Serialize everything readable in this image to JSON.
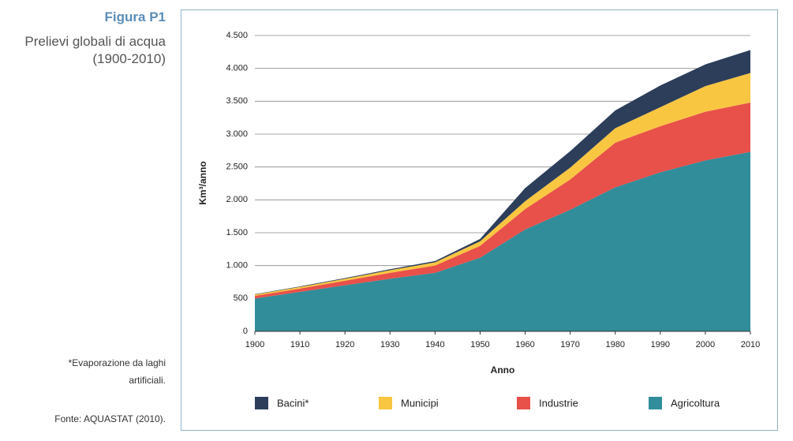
{
  "figure_label": "Figura P1",
  "subtitle_lines": [
    "Prelievi globali di acqua",
    "(1900-2010)"
  ],
  "footnote": "*Evaporazione da laghi artificiali.",
  "source": "Fonte: AQUASTAT (2010).",
  "chart_data": {
    "type": "stacked_area",
    "x_label": "Anno",
    "y_label": "Km³/anno",
    "x": [
      1900,
      1910,
      1920,
      1930,
      1940,
      1950,
      1960,
      1970,
      1980,
      1990,
      2000,
      2010
    ],
    "xlim": [
      1900,
      2010
    ],
    "xticks": [
      1900,
      1910,
      1920,
      1930,
      1940,
      1950,
      1960,
      1970,
      1980,
      1990,
      2000,
      2010
    ],
    "ylim": [
      0,
      4500
    ],
    "yticks": [
      0,
      500,
      {
        "value": 1000,
        "label": "1.000"
      },
      {
        "value": 1500,
        "label": "1.500"
      },
      {
        "value": 2000,
        "label": "2.000"
      },
      {
        "value": 2500,
        "label": "2.500"
      },
      {
        "value": 3000,
        "label": "3.000"
      },
      {
        "value": 3500,
        "label": "3.500"
      },
      {
        "value": 4000,
        "label": "4.000"
      },
      {
        "value": 4500,
        "label": "4.500"
      }
    ],
    "grid": true,
    "series": [
      {
        "name": "Bacini*",
        "color": "#2c3e5a",
        "values": [
          5,
          8,
          10,
          15,
          20,
          35,
          200,
          250,
          270,
          330,
          330,
          350
        ]
      },
      {
        "name": "Municipi",
        "color": "#f9c642",
        "values": [
          20,
          25,
          30,
          40,
          50,
          70,
          120,
          180,
          220,
          290,
          390,
          450
        ]
      },
      {
        "name": "Industrie",
        "color": "#e8504a",
        "values": [
          40,
          50,
          70,
          90,
          110,
          180,
          310,
          460,
          680,
          700,
          740,
          750
        ]
      },
      {
        "name": "Agricoltura",
        "color": "#318d9a",
        "values": [
          500,
          600,
          700,
          800,
          890,
          1120,
          1550,
          1850,
          2190,
          2420,
          2600,
          2730
        ]
      }
    ]
  }
}
